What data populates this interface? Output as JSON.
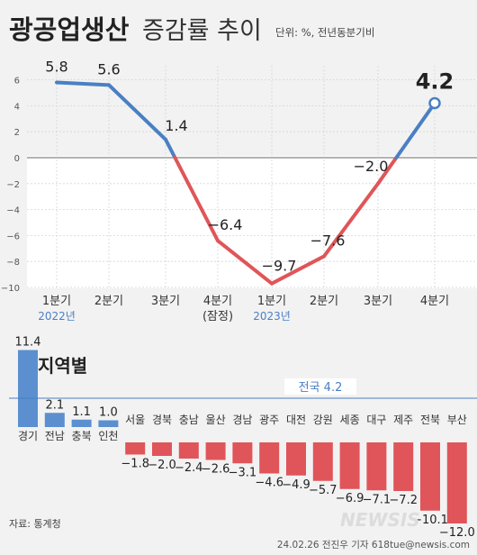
{
  "header": {
    "title_bold": "광공업생산",
    "title_light": "증감률 추이",
    "unit_note": "단위: %, 전년동분기비"
  },
  "colors": {
    "positive": "#4a7fc4",
    "negative": "#e05558",
    "regional_positive": "#5b8fd0",
    "regional_negative": "#e0555a",
    "national_line": "#4a7fc4",
    "background": "#f2f2f2"
  },
  "chart_data": [
    {
      "type": "line",
      "ylim": [
        -10,
        7
      ],
      "yticks": [
        6,
        4,
        2,
        0,
        -2,
        -4,
        -6,
        -8,
        -10
      ],
      "categories": [
        "1분기",
        "2분기",
        "3분기",
        "4분기",
        "1분기",
        "2분기",
        "3분기",
        "4분기"
      ],
      "category_notes": [
        "",
        "",
        "",
        "(잠정)",
        "",
        "",
        "",
        ""
      ],
      "year_labels": [
        {
          "label": "2022년",
          "start_index": 0
        },
        {
          "label": "2023년",
          "start_index": 4
        }
      ],
      "values": [
        5.8,
        5.6,
        1.4,
        -6.4,
        -9.7,
        -7.6,
        -2.0,
        4.2
      ],
      "value_labels": [
        "5.8",
        "5.6",
        "1.4",
        "−6.4",
        "−9.7",
        "−7.6",
        "−2.0",
        "4.2"
      ],
      "highlight_index": 7,
      "grid": true
    },
    {
      "type": "bar",
      "title": "지역별",
      "categories": [
        "경기",
        "전남",
        "충북",
        "인천",
        "서울",
        "경북",
        "충남",
        "울산",
        "경남",
        "광주",
        "대전",
        "강원",
        "세종",
        "대구",
        "제주",
        "전북",
        "부산"
      ],
      "values": [
        11.4,
        2.1,
        1.1,
        1.0,
        -1.8,
        -2.0,
        -2.4,
        -2.6,
        -3.1,
        -4.6,
        -4.9,
        -5.7,
        -6.9,
        -7.1,
        -7.2,
        -10.1,
        -12.0
      ],
      "value_labels": [
        "11.4",
        "2.1",
        "1.1",
        "1.0",
        "−1.8",
        "−2.0",
        "−2.4",
        "−2.6",
        "−3.1",
        "−4.6",
        "−4.9",
        "−5.7",
        "−6.9",
        "−7.1",
        "−7.2",
        "−10.1",
        "−12.0"
      ],
      "reference_line": {
        "label": "전국 4.2",
        "value": 4.2
      }
    }
  ],
  "footer": {
    "source": "자료: 통계청",
    "credit": "24.02.26 전진우 기자 618tue@newsis.com",
    "watermark": "NEWSIS"
  }
}
